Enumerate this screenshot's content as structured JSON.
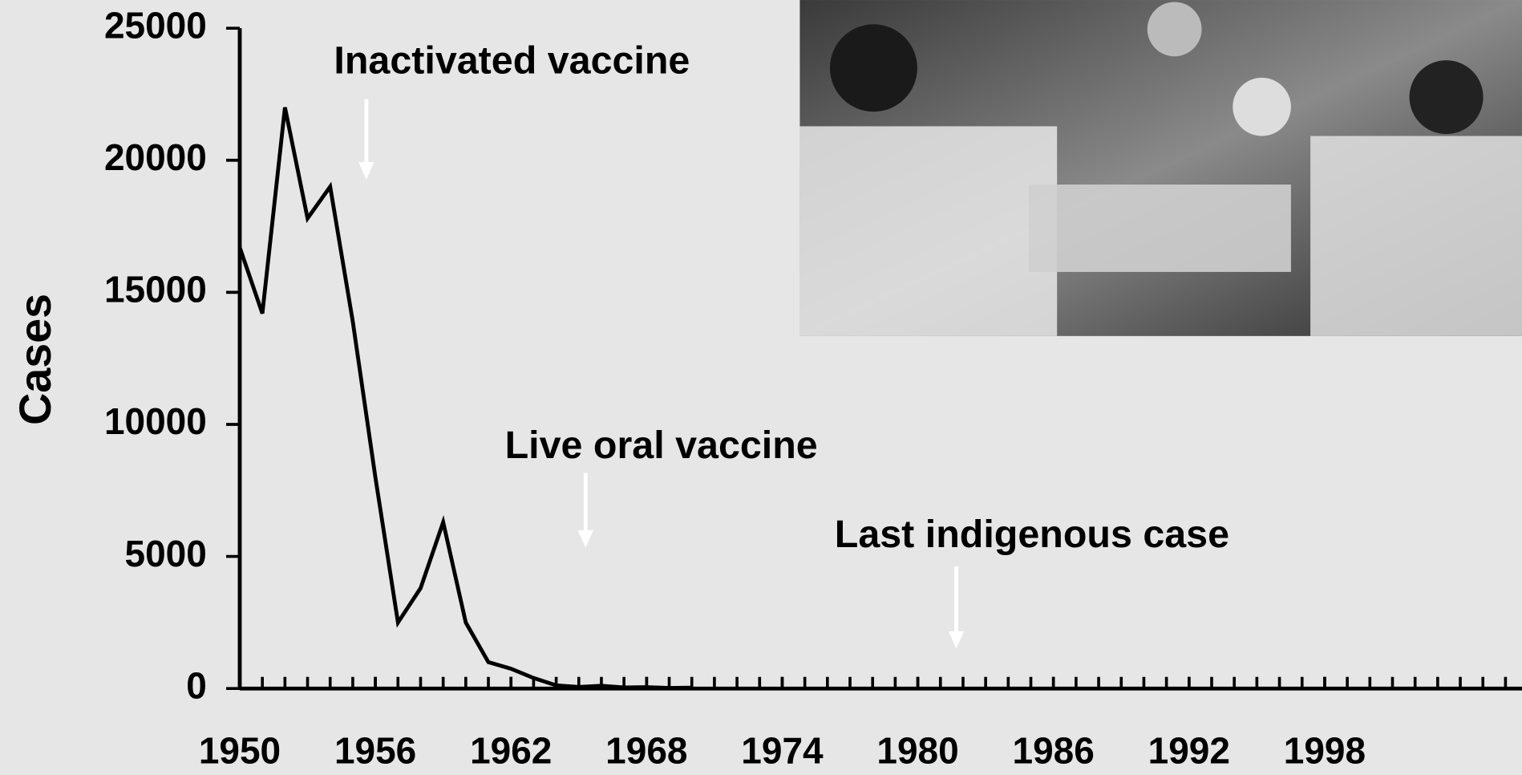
{
  "chart_data": {
    "type": "line",
    "y_label": "Cases",
    "x": [
      1950,
      1951,
      1952,
      1953,
      1954,
      1955,
      1956,
      1957,
      1958,
      1959,
      1960,
      1961,
      1962,
      1963,
      1964,
      1965,
      1966,
      1967,
      1968,
      1969,
      1970
    ],
    "series": [
      {
        "name": "Cases",
        "color": "#000000",
        "values": [
          16700,
          14200,
          22000,
          17800,
          19000,
          13900,
          8000,
          2500,
          3800,
          6300,
          2500,
          1000,
          750,
          400,
          120,
          61,
          106,
          41,
          53,
          20,
          31
        ]
      }
    ],
    "xlim": [
      1950,
      2006
    ],
    "xticks": [
      1950,
      1956,
      1962,
      1968,
      1974,
      1980,
      1986,
      1992,
      1998
    ],
    "ylim": [
      0,
      25000
    ],
    "yticks": [
      0,
      5000,
      10000,
      15000,
      20000,
      25000
    ],
    "annotations": [
      {
        "text": "Inactivated vaccine",
        "x": 1955.6
      },
      {
        "text": "Live oral vaccine",
        "x": 1965.3
      },
      {
        "text": "Last indigenous case",
        "x": 1981.7
      }
    ]
  }
}
